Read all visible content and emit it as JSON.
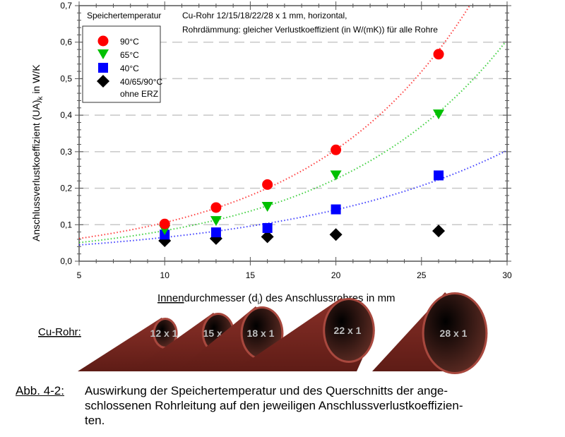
{
  "chart_data": {
    "type": "scatter",
    "xlabel_underlined": "Innen",
    "xlabel_rest_1": "durchmesser (d",
    "xlabel_sub": "i",
    "xlabel_rest_2": ") des Anschlussrohres in mm",
    "ylabel_main": "Anschlussverlustkoeffizient (UA)",
    "ylabel_sub": "k",
    "ylabel_unit": " in W/K",
    "xlim": [
      5,
      30
    ],
    "ylim": [
      0,
      0.7
    ],
    "xticks": [
      "5",
      "10",
      "15",
      "20",
      "25",
      "30"
    ],
    "yticks": [
      "0,0",
      "0,1",
      "0,2",
      "0,3",
      "0,4",
      "0,5",
      "0,6",
      "0,7"
    ],
    "grid": "horizontal dashed",
    "legend_title": "Speichertemperatur",
    "legend_position": "top-left",
    "annotation_lines": [
      "Cu-Rohr 12/15/18/22/28 x 1 mm, horizontal,",
      "Rohrdämmung: gleicher Verlustkoeffizient (in W/(mK)) für alle Rohre"
    ],
    "x": [
      10,
      13,
      16,
      20,
      26
    ],
    "series": [
      {
        "name": "90°C",
        "marker": "circle",
        "color": "#ff0000",
        "values": [
          0.102,
          0.147,
          0.21,
          0.305,
          0.567
        ],
        "trendline": "exponential"
      },
      {
        "name": "65°C",
        "marker": "triangle-down",
        "color": "#00c000",
        "values": [
          0.085,
          0.11,
          0.149,
          0.235,
          0.402
        ],
        "trendline": "exponential"
      },
      {
        "name": "40°C",
        "marker": "square",
        "color": "#0000ff",
        "values": [
          0.073,
          0.079,
          0.091,
          0.142,
          0.235
        ],
        "trendline": "exponential"
      },
      {
        "name": "40/65/90°C",
        "name2": "ohne ERZ",
        "marker": "diamond",
        "color": "#000000",
        "values": [
          0.056,
          0.062,
          0.067,
          0.073,
          0.083
        ],
        "trendline": "none"
      }
    ]
  },
  "pipes": {
    "label": "Cu-Rohr:",
    "items": [
      "12 x 1",
      "15 x 1",
      "18 x 1",
      "22 x 1",
      "28 x 1"
    ]
  },
  "caption": {
    "label": "Abb. 4-2:",
    "lines": [
      "Auswirkung der Speichertemperatur und des Querschnitts der ange-",
      "schlossenen Rohrleitung auf den jeweiligen Anschlussverlustkoeffizien-",
      "ten."
    ]
  }
}
